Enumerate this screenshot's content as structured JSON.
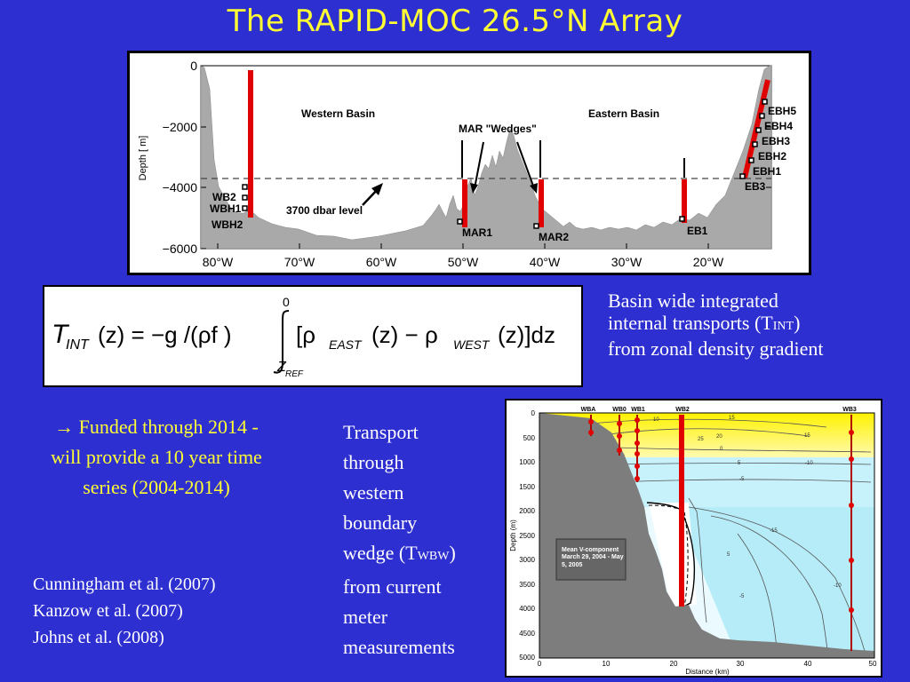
{
  "title": "The RAPID-MOC 26.5°N Array",
  "section": {
    "ylabel": "Depth [ m]",
    "yticks": [
      "0",
      "−2000",
      "−4000",
      "−6000"
    ],
    "xticks": [
      "80°W",
      "70°W",
      "60°W",
      "50°W",
      "40°W",
      "30°W",
      "20°W"
    ],
    "western_basin": "Western Basin",
    "eastern_basin": "Eastern Basin",
    "mar_wedges": "MAR \"Wedges\"",
    "level_label": "3700 dbar level",
    "moorings_west": [
      "WB2",
      "WBH1",
      "WBH2"
    ],
    "mar1": "MAR1",
    "mar2": "MAR2",
    "eb1": "EB1",
    "moorings_east": [
      "EBH5",
      "EBH4",
      "EBH3",
      "EBH2",
      "EBH1",
      "EB3"
    ]
  },
  "equation": {
    "lhs_main": "T",
    "lhs_sub": "INT",
    "lhs_arg": "(z) = −g /(ρf )",
    "upper_limit": "0",
    "lower_limit_main": "Z",
    "lower_limit_sub": "REF",
    "integrand_open": "[ρ",
    "east_sub": "EAST",
    "east_arg": "(z) − ρ",
    "west_sub": "WEST",
    "west_arg": "(z)]dz"
  },
  "basin_text": {
    "line1": "Basin wide integrated",
    "line2_pre": "internal transports (T",
    "line2_sub": "INT",
    "line2_post": ")",
    "line3": "from zonal density gradient"
  },
  "funded_text": "→ Funded through 2014 - will provide a 10 year time series (2004-2014)",
  "references": [
    "Cunningham et al. (2007)",
    "Kanzow et al. (2007)",
    "Johns et al. (2008)"
  ],
  "transport_text": {
    "lines": [
      "Transport",
      "through",
      "western",
      "boundary"
    ],
    "wedge_pre": "wedge (T",
    "wedge_sub": "WBW",
    "wedge_post": ")",
    "tail": [
      "from current",
      "meter",
      "measurements"
    ]
  },
  "wbw_plot": {
    "moorings": [
      "WBA",
      "WB0",
      "WB1",
      "WB2",
      "WB3"
    ],
    "yticks": [
      "0",
      "500",
      "1000",
      "1500",
      "2000",
      "2500",
      "3000",
      "3500",
      "4000",
      "4500",
      "5000"
    ],
    "xticks": [
      "0",
      "10",
      "20",
      "30",
      "40",
      "50"
    ],
    "ylabel": "Depth (m)",
    "xlabel": "Distance (km)",
    "legend_title": "Mean V-component",
    "legend_dates": "March 29, 2004 - May 5, 2005",
    "contour_labels": [
      "15",
      "20",
      "25",
      "10",
      "5",
      "0",
      "-5",
      "-10",
      "-15",
      "5",
      "15",
      "-5",
      "-10"
    ]
  }
}
